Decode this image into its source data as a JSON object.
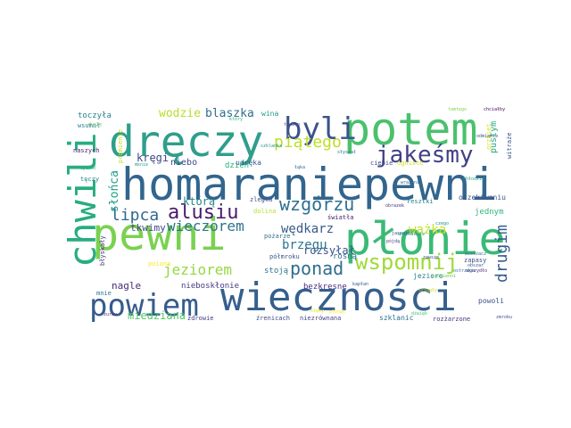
{
  "words": [
    {
      "text": "homaraniepewni",
      "color": "#32658e"
    },
    {
      "text": "pewni",
      "color": "#7ad151"
    },
    {
      "text": "wieczności",
      "color": "#355f8d"
    },
    {
      "text": "płonie",
      "color": "#3aba76"
    },
    {
      "text": "dręczy",
      "color": "#2f9e8b"
    },
    {
      "text": "potem",
      "color": "#4ac16d"
    },
    {
      "text": "chwili",
      "color": "#27ad81"
    },
    {
      "text": "powiem",
      "color": "#365c8d"
    },
    {
      "text": "jakeśmy",
      "color": "#424086"
    },
    {
      "text": "byli",
      "color": "#3b528b"
    },
    {
      "text": "wspomnij",
      "color": "#a0da39"
    },
    {
      "text": "alusiu",
      "color": "#481a6c"
    },
    {
      "text": "wzgórzu",
      "color": "#2d708e"
    },
    {
      "text": "ponad",
      "color": "#2e6e8e"
    },
    {
      "text": "piątego",
      "color": "#bddf26"
    },
    {
      "text": "wieczorem",
      "color": "#2c738e"
    },
    {
      "text": "jeziorem",
      "color": "#95d840"
    },
    {
      "text": "lipca",
      "color": "#30698e"
    },
    {
      "text": "drugim",
      "color": "#365d8d"
    },
    {
      "text": "brzegu",
      "color": "#2b758e"
    },
    {
      "text": "wędkarz",
      "color": "#38588c"
    },
    {
      "text": "ważka",
      "color": "#c2df23"
    },
    {
      "text": "miedziana",
      "color": "#54c568"
    },
    {
      "text": "blaszka",
      "color": "#2e6f8e"
    },
    {
      "text": "wodzie",
      "color": "#b8de29"
    },
    {
      "text": "słońca",
      "color": "#1fa187"
    },
    {
      "text": "rozsyłał",
      "color": "#3a548c"
    },
    {
      "text": "którą",
      "color": "#25848e"
    },
    {
      "text": "kręgi",
      "color": "#3f4788"
    },
    {
      "text": "tkwimy",
      "color": "#404688"
    },
    {
      "text": "nagle",
      "color": "#482878"
    },
    {
      "text": "jednym",
      "color": "#2fb47c"
    },
    {
      "text": "pustym",
      "color": "#25ab82"
    },
    {
      "text": "toczyła",
      "color": "#26828e"
    },
    {
      "text": "niebo",
      "color": "#3f4889"
    },
    {
      "text": "dzień",
      "color": "#29af7f"
    },
    {
      "text": "wina",
      "color": "#1f998a"
    },
    {
      "text": "stoją",
      "color": "#2a768e"
    },
    {
      "text": "nieboskłonie",
      "color": "#443983"
    },
    {
      "text": "bezkresne",
      "color": "#472d7b"
    },
    {
      "text": "rosną",
      "color": "#2e6d8e"
    },
    {
      "text": "zdrowie",
      "color": "#443a83"
    },
    {
      "text": "źrenicach",
      "color": "#3e4989"
    },
    {
      "text": "niezrównana",
      "color": "#414487"
    },
    {
      "text": "szklanic",
      "color": "#2c728e"
    },
    {
      "text": "rozżarzone",
      "color": "#453581"
    },
    {
      "text": "powoli",
      "color": "#3b518b"
    },
    {
      "text": "jezioro",
      "color": "#287c8e"
    },
    {
      "text": "udręka",
      "color": "#365c8d"
    },
    {
      "text": "wsumał",
      "color": "#26818e"
    },
    {
      "text": "naszych",
      "color": "#482173"
    },
    {
      "text": "tęczy",
      "color": "#25858e"
    },
    {
      "text": "witraże",
      "color": "#3b528b"
    },
    {
      "text": "oczekiwaniu",
      "color": "#3b528b"
    },
    {
      "text": "resztki",
      "color": "#277f8e"
    },
    {
      "text": "ciebie",
      "color": "#3e4a89"
    },
    {
      "text": "pożarze",
      "color": "#2c738e"
    },
    {
      "text": "dolina",
      "color": "#b5de2b"
    },
    {
      "text": "światła",
      "color": "#482475"
    },
    {
      "text": "półmroku",
      "color": "#39568c"
    },
    {
      "text": "zległa",
      "color": "#3c4f8a"
    },
    {
      "text": "błyskały",
      "color": "#472c7a"
    },
    {
      "text": "mnie",
      "color": "#2a788e"
    },
    {
      "text": "poiana",
      "color": "#fde725"
    },
    {
      "text": "zapasy",
      "color": "#3e4c8a"
    },
    {
      "text": "ogniste",
      "color": "#d0e11c"
    },
    {
      "text": "grzbiet",
      "color": "#dde318"
    },
    {
      "text": "promienie",
      "color": "#bddf26"
    },
    {
      "text": "duszę",
      "color": "#6ccd5a"
    },
    {
      "text": "opisać",
      "color": "#2ab07f"
    },
    {
      "text": "mknie",
      "color": "#20a486"
    },
    {
      "text": "który",
      "color": "#2db27d"
    },
    {
      "text": "szklanka",
      "color": "#21918c"
    },
    {
      "text": "promienni",
      "color": "#5ec962"
    },
    {
      "text": "obszar",
      "color": "#365c8d"
    },
    {
      "text": "wrażenie",
      "color": "#31688e"
    },
    {
      "text": "trwało",
      "color": "#443b84"
    },
    {
      "text": "jasności",
      "color": "#3e4a89"
    },
    {
      "text": "słyszał",
      "color": "#2a788e"
    },
    {
      "text": "obrazek",
      "color": "#46327e"
    },
    {
      "text": "chciałby",
      "color": "#440154"
    },
    {
      "text": "ścigały",
      "color": "#c8e020"
    },
    {
      "text": "dźwięk",
      "color": "#4ac16d"
    },
    {
      "text": "tamtego",
      "color": "#7fd34e"
    },
    {
      "text": "odmianie",
      "color": "#39558c"
    },
    {
      "text": "chłodzie",
      "color": "#1f9f88"
    },
    {
      "text": "zawsze",
      "color": "#3e4989"
    },
    {
      "text": "uniesienie",
      "color": "#1f968b"
    },
    {
      "text": "skrzydło",
      "color": "#472a7a"
    },
    {
      "text": "płynął",
      "color": "#fde725"
    },
    {
      "text": "ostrzega",
      "color": "#2d708e"
    },
    {
      "text": "mieszacz",
      "color": "#2e6f8e"
    },
    {
      "text": "pójdą",
      "color": "#424086"
    },
    {
      "text": "zmroku",
      "color": "#3b528b"
    },
    {
      "text": "kłęby",
      "color": "#e5e419"
    },
    {
      "text": "czego",
      "color": "#21918c"
    },
    {
      "text": "żuraw",
      "color": "#472d7b"
    },
    {
      "text": "kapłan",
      "color": "#375a8c"
    },
    {
      "text": "łąka",
      "color": "#2c728e"
    }
  ]
}
